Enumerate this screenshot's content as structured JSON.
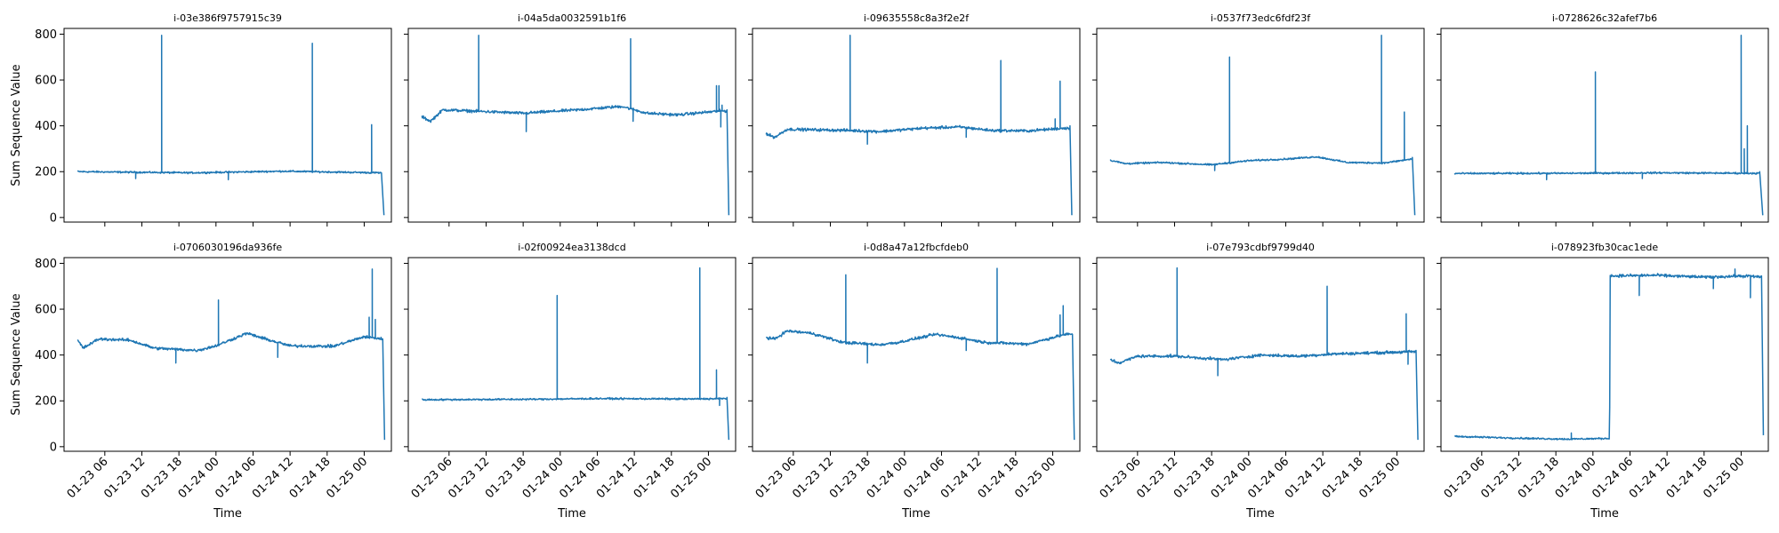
{
  "chart_data": {
    "type": "line",
    "layout": "2x5 small multiples, shared x and y axes",
    "ylabel": "Sum Sequence Value",
    "xlabel": "Time",
    "x_tick_labels": [
      "01-23 06",
      "01-23 12",
      "01-23 18",
      "01-24 00",
      "01-24 06",
      "01-24 12",
      "01-24 18",
      "01-25 00"
    ],
    "x_tick_hours": [
      6,
      12,
      18,
      24,
      30,
      36,
      42,
      48
    ],
    "xlim_hours": [
      -0.6,
      52.4
    ],
    "ylim": [
      -20,
      825
    ],
    "y_ticks": [
      0,
      200,
      400,
      600,
      800
    ],
    "line_color": "#1f77b4",
    "panels": [
      {
        "title": "i-03e386f9757915c39",
        "start_h": 1.6,
        "end_h": 51.2,
        "profile": [
          [
            1.6,
            200
          ],
          [
            20,
            195
          ],
          [
            35,
            202
          ],
          [
            50.6,
            195
          ]
        ],
        "spikes": [
          [
            15.2,
            795
          ],
          [
            39.6,
            760
          ],
          [
            49.2,
            405
          ],
          [
            11,
            170
          ],
          [
            26,
            165
          ]
        ],
        "end": [
          [
            50.8,
            190
          ],
          [
            51.2,
            10
          ]
        ]
      },
      {
        "title": "i-04a5da0032591b1f6",
        "start_h": 1.6,
        "end_h": 51.3,
        "profile": [
          [
            1.6,
            440
          ],
          [
            3,
            420
          ],
          [
            5,
            470
          ],
          [
            12,
            462
          ],
          [
            18,
            455
          ],
          [
            27,
            470
          ],
          [
            34,
            485
          ],
          [
            38,
            455
          ],
          [
            43,
            448
          ],
          [
            50,
            465
          ]
        ],
        "spikes": [
          [
            10.8,
            795
          ],
          [
            35.4,
            780
          ],
          [
            49.3,
            575
          ],
          [
            49.7,
            575
          ],
          [
            50.2,
            490
          ],
          [
            18.5,
            375
          ],
          [
            35.8,
            420
          ],
          [
            50.0,
            395
          ]
        ],
        "end": [
          [
            51.0,
            470
          ],
          [
            51.3,
            10
          ]
        ]
      },
      {
        "title": "i-09635558c8a3f2e2f",
        "start_h": 1.6,
        "end_h": 51.1,
        "profile": [
          [
            1.6,
            365
          ],
          [
            3,
            350
          ],
          [
            5,
            385
          ],
          [
            15,
            380
          ],
          [
            20,
            375
          ],
          [
            27,
            390
          ],
          [
            33,
            395
          ],
          [
            38,
            380
          ],
          [
            44,
            378
          ],
          [
            50,
            390
          ]
        ],
        "spikes": [
          [
            15.2,
            795
          ],
          [
            39.6,
            685
          ],
          [
            49.2,
            595
          ],
          [
            48.4,
            430
          ],
          [
            18,
            320
          ],
          [
            34,
            350
          ]
        ],
        "end": [
          [
            50.8,
            400
          ],
          [
            51.1,
            10
          ]
        ]
      },
      {
        "title": "i-0537f73edc6fdf23f",
        "start_h": 1.6,
        "end_h": 50.9,
        "profile": [
          [
            1.6,
            250
          ],
          [
            4,
            235
          ],
          [
            10,
            240
          ],
          [
            18,
            230
          ],
          [
            24,
            248
          ],
          [
            30,
            255
          ],
          [
            35,
            265
          ],
          [
            40,
            240
          ],
          [
            46,
            238
          ],
          [
            50.4,
            255
          ]
        ],
        "spikes": [
          [
            20.9,
            700
          ],
          [
            45.5,
            795
          ],
          [
            49.2,
            460
          ],
          [
            18.5,
            205
          ]
        ],
        "end": [
          [
            50.5,
            262
          ],
          [
            50.9,
            10
          ]
        ]
      },
      {
        "title": "i-0728626c32afef7b6",
        "start_h": 1.6,
        "end_h": 51.5,
        "profile": [
          [
            1.6,
            192
          ],
          [
            20,
            193
          ],
          [
            35,
            195
          ],
          [
            50,
            193
          ]
        ],
        "spikes": [
          [
            24.4,
            635
          ],
          [
            48.0,
            795
          ],
          [
            48.5,
            300
          ],
          [
            49.0,
            400
          ],
          [
            16.5,
            165
          ],
          [
            32,
            170
          ]
        ],
        "end": [
          [
            51.0,
            200
          ],
          [
            51.5,
            10
          ]
        ]
      },
      {
        "title": "i-0706030196da936fe",
        "start_h": 1.6,
        "end_h": 51.3,
        "profile": [
          [
            1.6,
            465
          ],
          [
            2.5,
            430
          ],
          [
            5,
            470
          ],
          [
            10,
            465
          ],
          [
            14,
            430
          ],
          [
            21,
            420
          ],
          [
            24,
            440
          ],
          [
            29,
            495
          ],
          [
            32,
            470
          ],
          [
            36,
            440
          ],
          [
            43,
            438
          ],
          [
            48,
            480
          ],
          [
            51,
            470
          ]
        ],
        "spikes": [
          [
            24.4,
            640
          ],
          [
            48.8,
            565
          ],
          [
            49.3,
            775
          ],
          [
            49.8,
            555
          ],
          [
            17.5,
            365
          ],
          [
            34,
            390
          ]
        ],
        "end": [
          [
            51.0,
            470
          ],
          [
            51.3,
            30
          ]
        ]
      },
      {
        "title": "i-02f00924ea3138dcd",
        "start_h": 1.6,
        "end_h": 51.3,
        "profile": [
          [
            1.6,
            205
          ],
          [
            20,
            207
          ],
          [
            30,
            210
          ],
          [
            45,
            208
          ],
          [
            51,
            210
          ]
        ],
        "spikes": [
          [
            23.5,
            660
          ],
          [
            46.6,
            780
          ],
          [
            49.3,
            335
          ],
          [
            49.8,
            180
          ]
        ],
        "end": [
          [
            51.0,
            215
          ],
          [
            51.3,
            30
          ]
        ]
      },
      {
        "title": "i-0d8a47a12fbcfdeb0",
        "start_h": 1.6,
        "end_h": 51.5,
        "profile": [
          [
            1.6,
            475
          ],
          [
            3,
            470
          ],
          [
            5,
            505
          ],
          [
            9,
            495
          ],
          [
            14,
            455
          ],
          [
            20,
            445
          ],
          [
            23,
            455
          ],
          [
            29,
            490
          ],
          [
            33,
            475
          ],
          [
            37,
            455
          ],
          [
            44,
            448
          ],
          [
            50,
            490
          ]
        ],
        "spikes": [
          [
            14.5,
            750
          ],
          [
            39.0,
            778
          ],
          [
            49.2,
            575
          ],
          [
            49.7,
            615
          ],
          [
            18,
            365
          ],
          [
            34,
            420
          ]
        ],
        "end": [
          [
            51.2,
            490
          ],
          [
            51.5,
            30
          ]
        ]
      },
      {
        "title": "i-07e793cdbf9799d40",
        "start_h": 1.6,
        "end_h": 51.4,
        "profile": [
          [
            1.6,
            380
          ],
          [
            3,
            365
          ],
          [
            6,
            395
          ],
          [
            12,
            395
          ],
          [
            20,
            380
          ],
          [
            26,
            400
          ],
          [
            32,
            395
          ],
          [
            38,
            405
          ],
          [
            45,
            410
          ],
          [
            51,
            415
          ]
        ],
        "spikes": [
          [
            12.4,
            780
          ],
          [
            36.7,
            700
          ],
          [
            49.5,
            580
          ],
          [
            19,
            310
          ],
          [
            49.8,
            360
          ]
        ],
        "end": [
          [
            51.1,
            420
          ],
          [
            51.4,
            30
          ]
        ]
      },
      {
        "title": "i-078923fb30cac1ede",
        "start_h": 1.6,
        "end_h": 51.6,
        "profile": [
          [
            1.6,
            45
          ],
          [
            8,
            40
          ],
          [
            14,
            36
          ],
          [
            20,
            33
          ],
          [
            24,
            35
          ],
          [
            26.7,
            36
          ],
          [
            26.8,
            745
          ],
          [
            34,
            748
          ],
          [
            42,
            740
          ],
          [
            49,
            745
          ],
          [
            51.3,
            740
          ]
        ],
        "spikes": [
          [
            20.5,
            60
          ],
          [
            31.5,
            660
          ],
          [
            43.5,
            690
          ],
          [
            49.5,
            650
          ],
          [
            47,
            775
          ]
        ],
        "end": [
          [
            51.3,
            745
          ],
          [
            51.6,
            50
          ]
        ]
      }
    ]
  }
}
